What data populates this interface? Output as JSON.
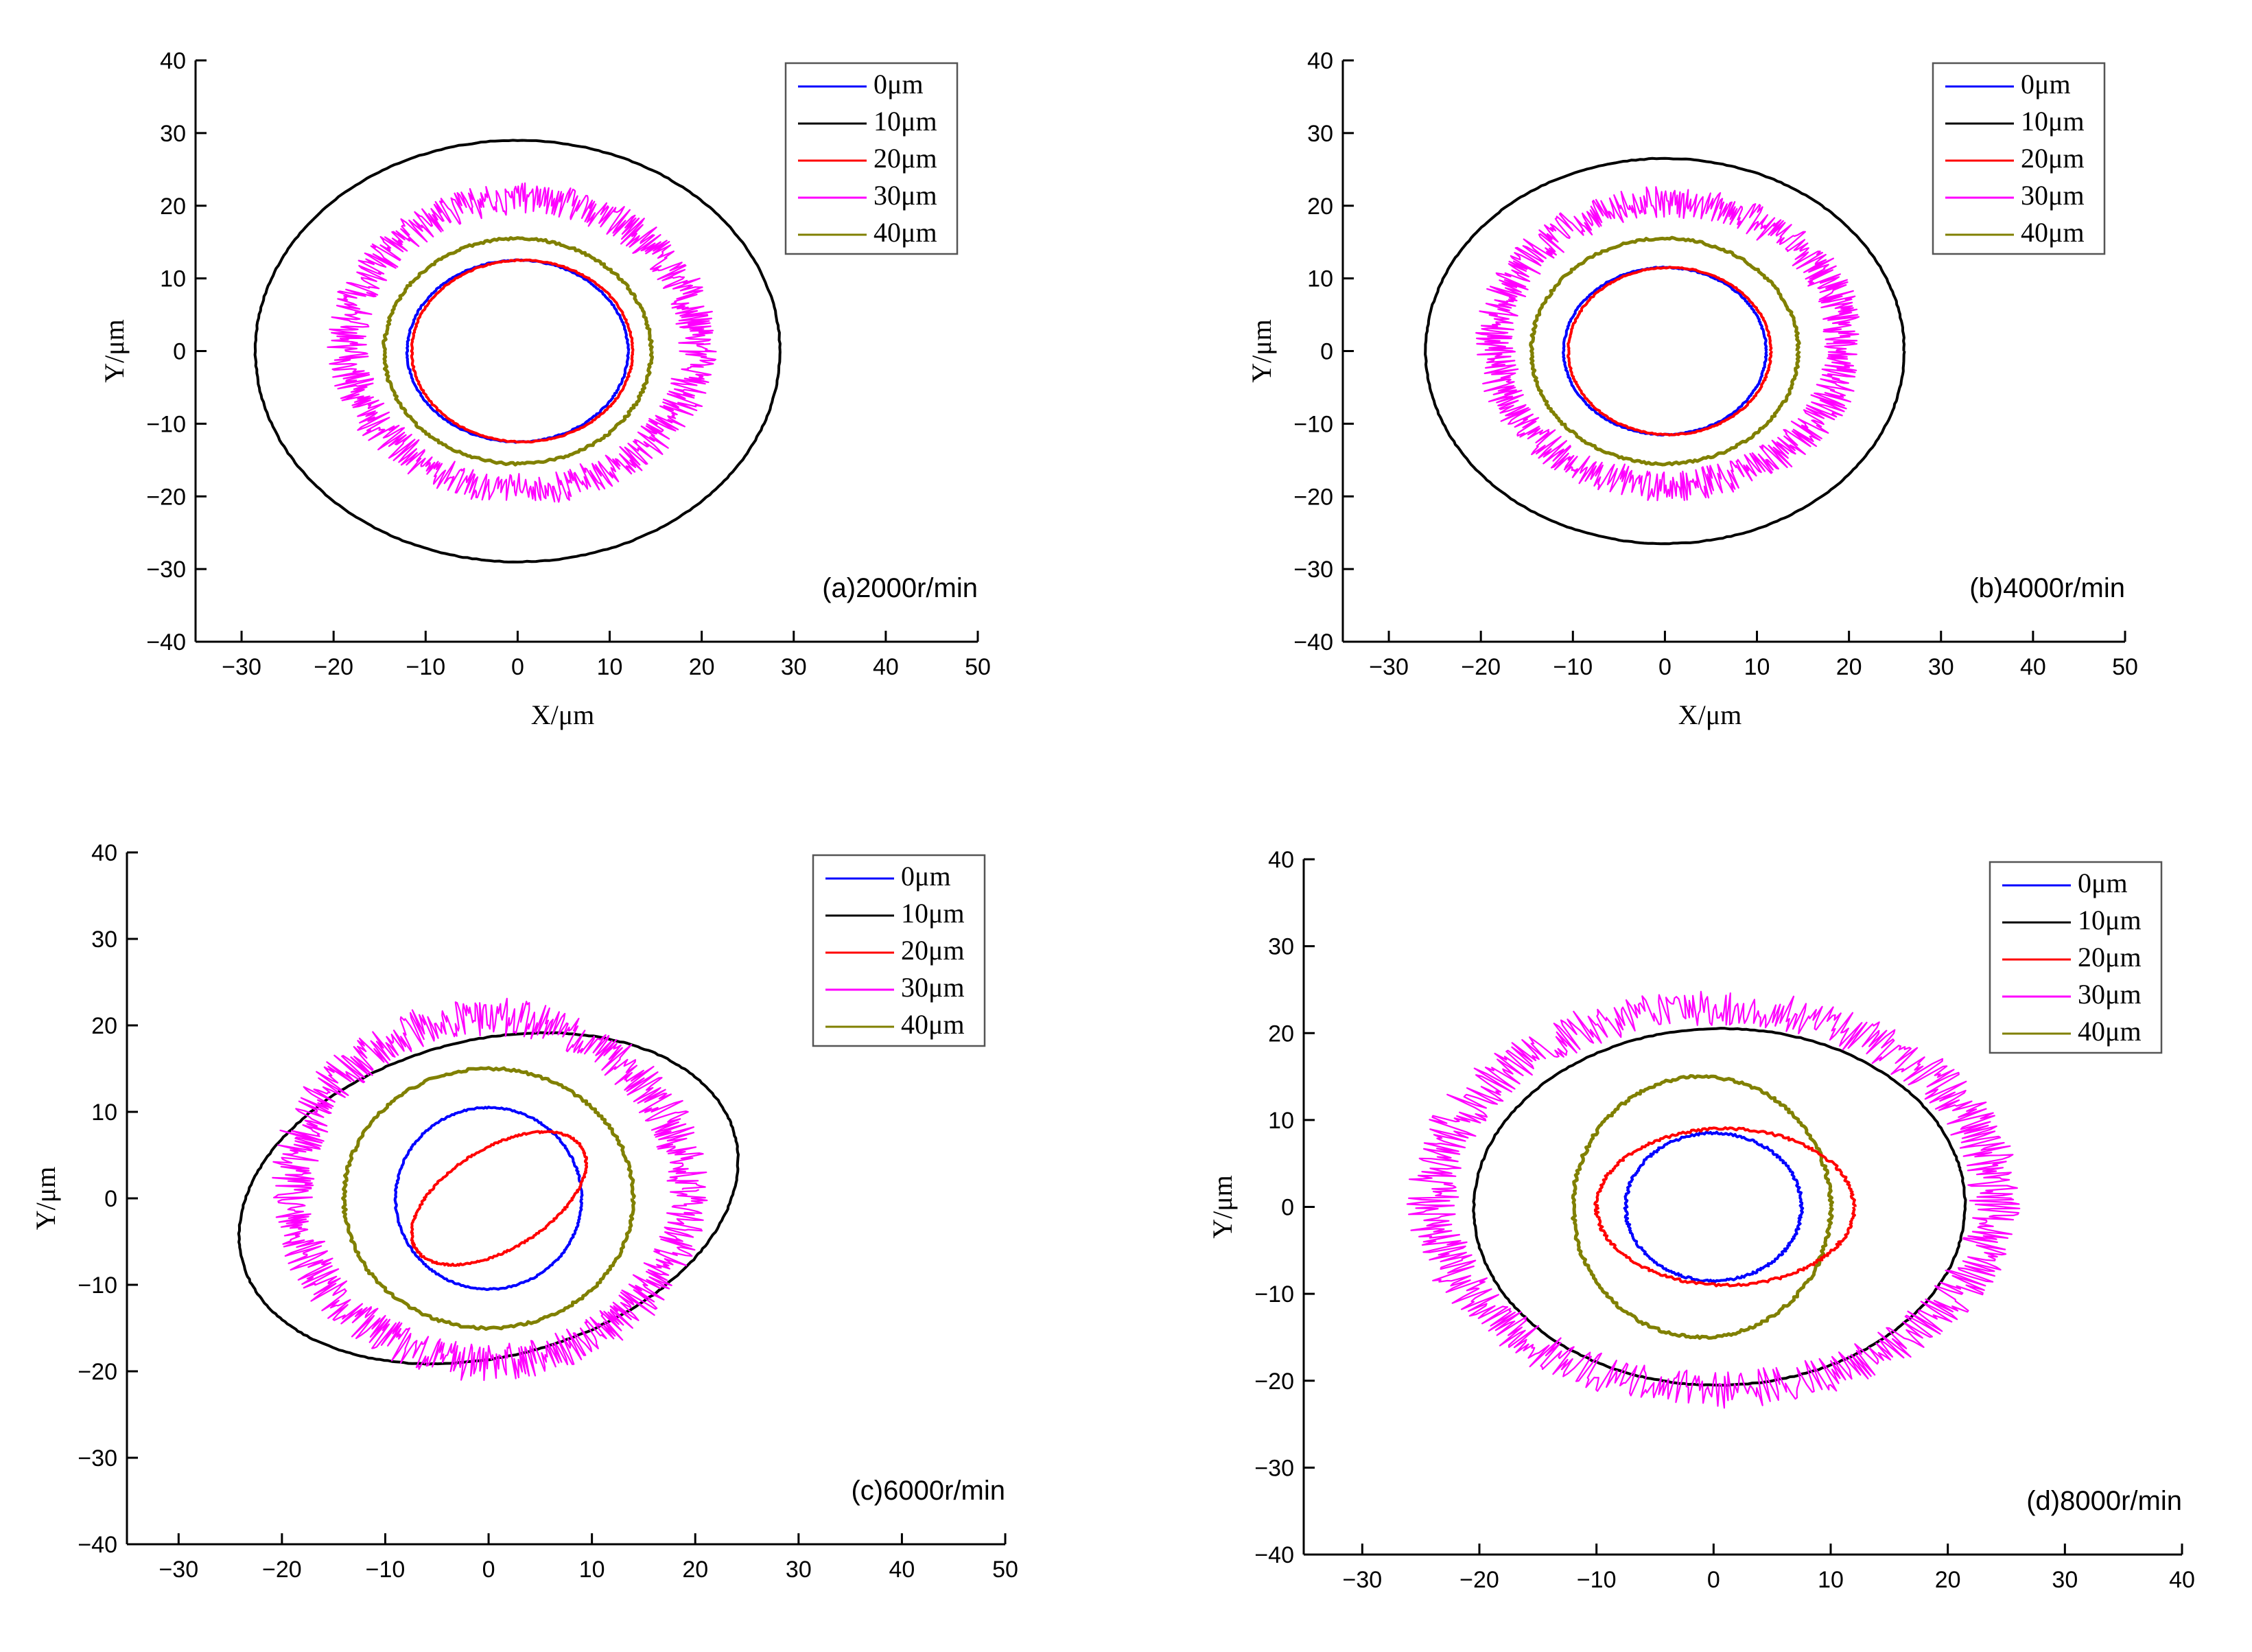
{
  "chart_data": [
    {
      "type": "line",
      "panel_label": "(a)2000r/min",
      "xlabel": "X/μm",
      "ylabel": "Y/μm",
      "xlim": [
        -35,
        50
      ],
      "ylim": [
        -40,
        40
      ],
      "xticks": [
        "−30",
        "−20",
        "−10",
        "0",
        "10",
        "20",
        "30",
        "40",
        "50"
      ],
      "yticks": [
        "40",
        "30",
        "20",
        "10",
        "0",
        "−10",
        "−20",
        "−30",
        "−40"
      ],
      "legend_position": "top-right",
      "series": [
        {
          "name": "0μm",
          "color": "#0000ff",
          "center": [
            0,
            0
          ],
          "radii": [
            12,
            12.5
          ],
          "rotation_deg": 0,
          "noise": 0.15
        },
        {
          "name": "10μm",
          "color": "#000000",
          "center": [
            0,
            0
          ],
          "radii": [
            28.5,
            29
          ],
          "rotation_deg": 0,
          "noise": 0.1
        },
        {
          "name": "20μm",
          "color": "#ff0000",
          "center": [
            0.5,
            0
          ],
          "radii": [
            12,
            12.5
          ],
          "rotation_deg": 0,
          "noise": 0.15
        },
        {
          "name": "30μm",
          "color": "#ff00ff",
          "center": [
            0.5,
            1
          ],
          "radii": [
            19,
            20
          ],
          "rotation_deg": 0,
          "noise": 2.2
        },
        {
          "name": "40μm",
          "color": "#808000",
          "center": [
            0,
            0
          ],
          "radii": [
            14.5,
            15.5
          ],
          "rotation_deg": 0,
          "noise": 0.3
        }
      ]
    },
    {
      "type": "line",
      "panel_label": "(b)4000r/min",
      "xlabel": "X/μm",
      "ylabel": "Y/μm",
      "xlim": [
        -35,
        50
      ],
      "ylim": [
        -40,
        40
      ],
      "xticks": [
        "−30",
        "−20",
        "−10",
        "0",
        "10",
        "20",
        "30",
        "40",
        "50"
      ],
      "yticks": [
        "40",
        "30",
        "20",
        "10",
        "0",
        "−10",
        "−20",
        "−30",
        "−40"
      ],
      "legend_position": "top-right",
      "series": [
        {
          "name": "0μm",
          "color": "#0000ff",
          "center": [
            0,
            0
          ],
          "radii": [
            11,
            11.5
          ],
          "rotation_deg": 0,
          "noise": 0.15
        },
        {
          "name": "10μm",
          "color": "#000000",
          "center": [
            0,
            0
          ],
          "radii": [
            26,
            26.5
          ],
          "rotation_deg": 0,
          "noise": 0.1
        },
        {
          "name": "20μm",
          "color": "#ff0000",
          "center": [
            0.5,
            0
          ],
          "radii": [
            11,
            11.5
          ],
          "rotation_deg": 0,
          "noise": 0.15
        },
        {
          "name": "30μm",
          "color": "#ff00ff",
          "center": [
            0.5,
            1
          ],
          "radii": [
            19,
            19.5
          ],
          "rotation_deg": 0,
          "noise": 2.2
        },
        {
          "name": "40μm",
          "color": "#808000",
          "center": [
            0,
            0
          ],
          "radii": [
            14.5,
            15.5
          ],
          "rotation_deg": 0,
          "noise": 0.3
        }
      ]
    },
    {
      "type": "line",
      "panel_label": "(c)6000r/min",
      "xlabel": "",
      "ylabel": "Y/μm",
      "xlim": [
        -35,
        50
      ],
      "ylim": [
        -40,
        40
      ],
      "xticks": [
        "−30",
        "−20",
        "−10",
        "0",
        "10",
        "20",
        "30",
        "40",
        "50"
      ],
      "yticks": [
        "40",
        "30",
        "20",
        "10",
        "0",
        "−10",
        "−20",
        "−30",
        "−40"
      ],
      "legend_position": "top-right",
      "series": [
        {
          "name": "0μm",
          "color": "#0000ff",
          "center": [
            0,
            0
          ],
          "radii": [
            9,
            10.5
          ],
          "rotation_deg": 0,
          "noise": 0.15
        },
        {
          "name": "10μm",
          "color": "#000000",
          "center": [
            0,
            0
          ],
          "radii": [
            25,
            18
          ],
          "rotation_deg": 22,
          "noise": 0.1
        },
        {
          "name": "20μm",
          "color": "#ff0000",
          "center": [
            1,
            0
          ],
          "radii": [
            10,
            5.5
          ],
          "rotation_deg": 40,
          "noise": 0.2
        },
        {
          "name": "30μm",
          "color": "#ff00ff",
          "center": [
            0,
            1
          ],
          "radii": [
            19,
            20
          ],
          "rotation_deg": 0,
          "noise": 2.2
        },
        {
          "name": "40μm",
          "color": "#808000",
          "center": [
            0,
            0
          ],
          "radii": [
            14,
            15
          ],
          "rotation_deg": 0,
          "noise": 0.3
        }
      ]
    },
    {
      "type": "line",
      "panel_label": "(d)8000r/min",
      "xlabel": "",
      "ylabel": "Y/μm",
      "xlim": [
        -35,
        40
      ],
      "ylim": [
        -40,
        40
      ],
      "xticks": [
        "−30",
        "−20",
        "−10",
        "0",
        "10",
        "20",
        "30",
        "40"
      ],
      "yticks": [
        "40",
        "30",
        "20",
        "10",
        "0",
        "−10",
        "−20",
        "−30",
        "−40"
      ],
      "legend_position": "top-right",
      "series": [
        {
          "name": "0μm",
          "color": "#0000ff",
          "center": [
            0,
            0
          ],
          "radii": [
            7.5,
            8.5
          ],
          "rotation_deg": 0,
          "noise": 0.25
        },
        {
          "name": "10μm",
          "color": "#000000",
          "center": [
            0.5,
            0
          ],
          "radii": [
            21,
            20.5
          ],
          "rotation_deg": 12,
          "noise": 0.1
        },
        {
          "name": "20μm",
          "color": "#ff0000",
          "center": [
            1,
            0
          ],
          "radii": [
            11,
            9
          ],
          "rotation_deg": 0,
          "noise": 0.3
        },
        {
          "name": "30μm",
          "color": "#ff00ff",
          "center": [
            0,
            1
          ],
          "radii": [
            24,
            22
          ],
          "rotation_deg": 0,
          "noise": 2.2
        },
        {
          "name": "40μm",
          "color": "#808000",
          "center": [
            -1,
            0
          ],
          "radii": [
            11,
            15
          ],
          "rotation_deg": 0,
          "noise": 0.3
        }
      ]
    }
  ]
}
